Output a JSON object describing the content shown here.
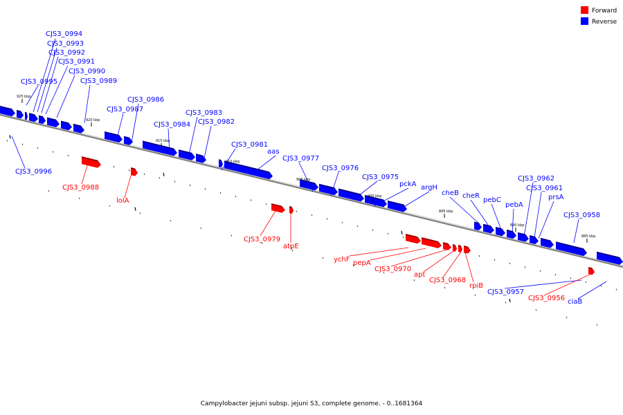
{
  "colors": {
    "forward": "#ff0000",
    "reverse": "#0000ff",
    "forward_dark": "#9a0000",
    "reverse_dark": "#00008c",
    "backbone": "#808080"
  },
  "legend": [
    {
      "label": "Forward",
      "color": "#ff0000"
    },
    {
      "label": "Reverse",
      "color": "#0000ff"
    }
  ],
  "caption": "Campylobacter jejuni subsp. jejuni S3, complete genome. - 0..1681364",
  "scale_labels": [
    "925 kbp",
    "920 kbp",
    "915 kbp",
    "910 kbp",
    "905 kbp",
    "900 kbp",
    "895 kbp",
    "890 kbp",
    "885 kbp"
  ],
  "genes_reverse": [
    "CJS3_0996",
    "CJS3_0995",
    "CJS3_0994",
    "CJS3_0993",
    "CJS3_0992",
    "CJS3_0991",
    "CJS3_0990",
    "CJS3_0989",
    "CJS3_0987",
    "CJS3_0986",
    "CJS3_0984",
    "CJS3_0983",
    "CJS3_0982",
    "CJS3_0981",
    "aas",
    "CJS3_0977",
    "CJS3_0976",
    "CJS3_0975",
    "pckA",
    "argH",
    "cheB",
    "cheR",
    "pebC",
    "pebA",
    "CJS3_0962",
    "CJS3_0961",
    "prsA",
    "CJS3_0958",
    "CJS3_0957",
    "ciaB"
  ],
  "genes_forward": [
    "CJS3_0988",
    "lolA",
    "CJS3_0979",
    "atpE",
    "ychF",
    "pepA",
    "CJS3_0970",
    "apt",
    "CJS3_0968",
    "rpiB",
    "CJS3_0956"
  ]
}
